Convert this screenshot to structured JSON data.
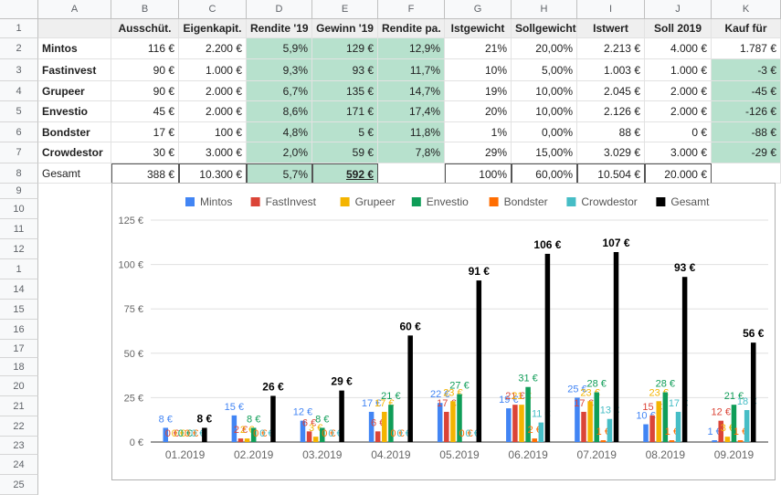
{
  "sheet": {
    "columns": [
      "A",
      "B",
      "C",
      "D",
      "E",
      "F",
      "G",
      "H",
      "I",
      "J",
      "K"
    ],
    "rows": [
      "1",
      "2",
      "3",
      "4",
      "5",
      "6",
      "7",
      "8",
      "9",
      "10",
      "11",
      "12",
      "1",
      "14",
      "15",
      "16",
      "17",
      "18",
      "20",
      "21",
      "22",
      "23",
      "24",
      "25"
    ],
    "headers": [
      "",
      "Ausschüt.",
      "Eigenkapit.",
      "Rendite '19",
      "Gewinn '19",
      "Rendite pa.",
      "Istgewicht",
      "Sollgewicht",
      "Istwert",
      "Soll 2019",
      "Kauf für"
    ],
    "data": [
      [
        "Mintos",
        "116 €",
        "2.200 €",
        "5,9%",
        "129 €",
        "12,9%",
        "21%",
        "20,00%",
        "2.213 €",
        "4.000 €",
        "1.787 €"
      ],
      [
        "Fastinvest",
        "90 €",
        "1.000 €",
        "9,3%",
        "93 €",
        "11,7%",
        "10%",
        "5,00%",
        "1.003 €",
        "1.000 €",
        "-3 €"
      ],
      [
        "Grupeer",
        "90 €",
        "2.000 €",
        "6,7%",
        "135 €",
        "14,7%",
        "19%",
        "10,00%",
        "2.045 €",
        "2.000 €",
        "-45 €"
      ],
      [
        "Envestio",
        "45 €",
        "2.000 €",
        "8,6%",
        "171 €",
        "17,4%",
        "20%",
        "10,00%",
        "2.126 €",
        "2.000 €",
        "-126 €"
      ],
      [
        "Bondster",
        "17 €",
        "100 €",
        "4,8%",
        "5 €",
        "11,8%",
        "1%",
        "0,00%",
        "88 €",
        "0 €",
        "-88 €"
      ],
      [
        "Crowdestor",
        "30 €",
        "3.000 €",
        "2,0%",
        "59 €",
        "7,8%",
        "29%",
        "15,00%",
        "3.029 €",
        "3.000 €",
        "-29 €"
      ]
    ],
    "total": [
      "Gesamt",
      "388 €",
      "10.300 €",
      "5,7%",
      "592 €",
      "",
      "100%",
      "60,00%",
      "10.504 €",
      "20.000 €",
      ""
    ]
  },
  "chart_data": {
    "type": "bar",
    "categories": [
      "01.2019",
      "02.2019",
      "03.2019",
      "04.2019",
      "05.2019",
      "06.2019",
      "07.2019",
      "08.2019",
      "09.2019"
    ],
    "ylim": [
      0,
      125
    ],
    "yticks": [
      "0 €",
      "25 €",
      "50 €",
      "75 €",
      "100 €",
      "125 €"
    ],
    "legend_position": "top",
    "series": [
      {
        "name": "Mintos",
        "color": "#4285f4",
        "values": [
          8,
          15,
          12,
          17,
          22,
          19,
          25,
          10,
          1
        ]
      },
      {
        "name": "FastInvest",
        "color": "#db4437",
        "values": [
          0,
          2,
          6,
          6,
          17,
          21,
          17,
          15,
          12
        ]
      },
      {
        "name": "Grupeer",
        "color": "#f4b400",
        "values": [
          0,
          2,
          3,
          17,
          23,
          21,
          23,
          23,
          3
        ]
      },
      {
        "name": "Envestio",
        "color": "#0f9d58",
        "values": [
          0,
          8,
          8,
          21,
          27,
          31,
          28,
          28,
          21
        ]
      },
      {
        "name": "Bondster",
        "color": "#ff6d01",
        "values": [
          0,
          0,
          0,
          0,
          0,
          2,
          1,
          1,
          1
        ]
      },
      {
        "name": "Crowdestor",
        "color": "#46bdc6",
        "values": [
          0,
          0,
          0,
          0,
          0,
          11,
          13,
          17,
          18
        ]
      },
      {
        "name": "Gesamt",
        "color": "#000000",
        "values": [
          8,
          26,
          29,
          60,
          91,
          106,
          107,
          93,
          56
        ]
      }
    ]
  }
}
